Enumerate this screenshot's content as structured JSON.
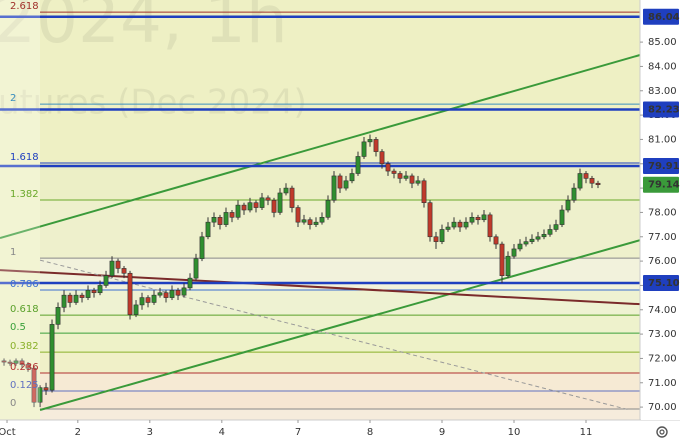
{
  "chart_data": {
    "type": "candlestick",
    "watermark": [
      "2024, 1h",
      "utures (Dec 2024)"
    ],
    "xlim": [
      -0.67,
      106
    ],
    "ylim": [
      69.47,
      86.73
    ],
    "xticks": [
      {
        "value": 0.5,
        "label": "Oct"
      },
      {
        "value": 12.3,
        "label": "2"
      },
      {
        "value": 24.3,
        "label": "3"
      },
      {
        "value": 36.3,
        "label": "4"
      },
      {
        "value": 49,
        "label": "7"
      },
      {
        "value": 61,
        "label": "8"
      },
      {
        "value": 73,
        "label": "9"
      },
      {
        "value": 85,
        "label": "10"
      },
      {
        "value": 97,
        "label": "11"
      }
    ],
    "yticks": [
      {
        "value": 70,
        "label": "70.00"
      },
      {
        "value": 71,
        "label": "71.00"
      },
      {
        "value": 72,
        "label": "72.00"
      },
      {
        "value": 73,
        "label": "73.00"
      },
      {
        "value": 74,
        "label": "74.00"
      },
      {
        "value": 75,
        "label": "75.00"
      },
      {
        "value": 76,
        "label": "76.00"
      },
      {
        "value": 77,
        "label": "77.00"
      },
      {
        "value": 78,
        "label": "78.00"
      },
      {
        "value": 79,
        "label": "79.00"
      },
      {
        "value": 80,
        "label": "80.00"
      },
      {
        "value": 81,
        "label": "81.00"
      },
      {
        "value": 82,
        "label": "82.00"
      },
      {
        "value": 83,
        "label": "83.00"
      },
      {
        "value": 84,
        "label": "84.00"
      },
      {
        "value": 85,
        "label": "85.00"
      }
    ],
    "up_color": "#2f8f2f",
    "down_color": "#c0392b",
    "fib_levels": [
      {
        "label": "2.618",
        "price": 86.23,
        "color": "#a0302a",
        "fill": "#eef0c4"
      },
      {
        "label": "2",
        "price": 82.45,
        "color": "#3a8fbf",
        "fill": "#eef0c4"
      },
      {
        "label": "1.618",
        "price": 80.03,
        "color": "#2040c0",
        "fill": "#ecefc6"
      },
      {
        "label": "1.382",
        "price": 78.51,
        "color": "#6aa82a",
        "fill": "#eef0cc"
      },
      {
        "label": "1",
        "price": 76.12,
        "color": "#888888",
        "fill": "#f2f2dc"
      },
      {
        "label": "0.786",
        "price": 74.81,
        "color": "#3a6fd0",
        "fill": "#eef2d2"
      },
      {
        "label": "0.618",
        "price": 73.78,
        "color": "#5aa02a",
        "fill": "#eef2cc"
      },
      {
        "label": "0.5",
        "price": 73.04,
        "color": "#3aa03a",
        "fill": "#eef2c8"
      },
      {
        "label": "0.382",
        "price": 72.26,
        "color": "#8ab02a",
        "fill": "#f0f0c8"
      },
      {
        "label": "0.236",
        "price": 71.4,
        "color": "#b03030",
        "fill": "#f6ead4"
      },
      {
        "label": "0.125",
        "price": 70.66,
        "color": "#6070c0",
        "fill": "#f6e6d2"
      },
      {
        "label": "0",
        "price": 69.92,
        "color": "#888888",
        "fill": "#f6ecdc"
      }
    ],
    "price_lines": [
      {
        "value": 86.04,
        "label": "86.04",
        "color": "#1f3fbf"
      },
      {
        "value": 82.23,
        "label": "82.23",
        "color": "#1f3fbf"
      },
      {
        "value": 79.91,
        "label": "79.91",
        "color": "#1f3fbf"
      },
      {
        "value": 75.1,
        "label": "75.10",
        "color": "#1f3fbf"
      }
    ],
    "last_price": {
      "value": 79.14,
      "label": "79.14",
      "color": "#3a9a3a"
    },
    "trend_lines": [
      {
        "color": "#3a9a3a",
        "dashed": false,
        "points": [
          [
            -0.67,
            76.95
          ],
          [
            106,
            84.47
          ]
        ]
      },
      {
        "color": "#3a9a3a",
        "dashed": false,
        "points": [
          [
            6,
            69.88
          ],
          [
            106,
            76.86
          ]
        ]
      },
      {
        "color": "#7a2a2a",
        "dashed": false,
        "points": [
          [
            -0.67,
            75.63
          ],
          [
            106,
            74.23
          ]
        ]
      },
      {
        "color": "#999999",
        "dashed": true,
        "points": [
          [
            6,
            76.04
          ],
          [
            104.3,
            69.88
          ]
        ]
      }
    ],
    "ohlc": [
      [
        71.9,
        72.0,
        71.7,
        71.85
      ],
      [
        71.85,
        71.95,
        71.7,
        71.8
      ],
      [
        71.8,
        72.0,
        71.7,
        71.9
      ],
      [
        71.9,
        72.0,
        71.6,
        71.75
      ],
      [
        71.75,
        71.85,
        71.45,
        71.6
      ],
      [
        71.6,
        71.7,
        70.0,
        70.2
      ],
      [
        70.2,
        70.9,
        70.0,
        70.8
      ],
      [
        70.8,
        71.0,
        70.5,
        70.7
      ],
      [
        70.7,
        73.6,
        70.6,
        73.4
      ],
      [
        73.4,
        74.3,
        73.2,
        74.1
      ],
      [
        74.1,
        74.8,
        73.9,
        74.6
      ],
      [
        74.6,
        74.7,
        74.1,
        74.3
      ],
      [
        74.3,
        74.8,
        74.2,
        74.6
      ],
      [
        74.6,
        74.7,
        74.3,
        74.5
      ],
      [
        74.5,
        75.0,
        74.4,
        74.8
      ],
      [
        74.8,
        74.9,
        74.5,
        74.7
      ],
      [
        74.7,
        75.2,
        74.6,
        75.0
      ],
      [
        75.0,
        75.6,
        74.9,
        75.4
      ],
      [
        75.4,
        76.2,
        75.3,
        76.0
      ],
      [
        76.0,
        76.1,
        75.5,
        75.7
      ],
      [
        75.7,
        75.8,
        75.3,
        75.5
      ],
      [
        75.5,
        75.6,
        73.6,
        73.8
      ],
      [
        73.8,
        74.4,
        73.7,
        74.2
      ],
      [
        74.2,
        74.7,
        74.0,
        74.5
      ],
      [
        74.5,
        74.6,
        74.1,
        74.3
      ],
      [
        74.3,
        74.8,
        74.2,
        74.6
      ],
      [
        74.6,
        74.9,
        74.5,
        74.7
      ],
      [
        74.7,
        74.8,
        74.3,
        74.5
      ],
      [
        74.5,
        75.0,
        74.4,
        74.8
      ],
      [
        74.8,
        74.9,
        74.4,
        74.6
      ],
      [
        74.6,
        75.1,
        74.5,
        74.9
      ],
      [
        74.9,
        75.5,
        74.8,
        75.3
      ],
      [
        75.3,
        76.3,
        75.2,
        76.1
      ],
      [
        76.1,
        77.2,
        76.0,
        77.0
      ],
      [
        77.0,
        77.8,
        76.9,
        77.6
      ],
      [
        77.6,
        78.0,
        77.4,
        77.8
      ],
      [
        77.8,
        77.9,
        77.3,
        77.5
      ],
      [
        77.5,
        78.2,
        77.4,
        78.0
      ],
      [
        78.0,
        78.1,
        77.6,
        77.8
      ],
      [
        77.8,
        78.5,
        77.7,
        78.3
      ],
      [
        78.3,
        78.4,
        77.9,
        78.1
      ],
      [
        78.1,
        78.6,
        78.0,
        78.4
      ],
      [
        78.4,
        78.5,
        78.0,
        78.2
      ],
      [
        78.2,
        78.8,
        78.1,
        78.6
      ],
      [
        78.6,
        78.7,
        78.3,
        78.5
      ],
      [
        78.5,
        78.6,
        77.8,
        78.0
      ],
      [
        78.0,
        79.0,
        77.9,
        78.8
      ],
      [
        78.8,
        79.2,
        78.7,
        79.0
      ],
      [
        79.0,
        79.1,
        78.0,
        78.2
      ],
      [
        78.2,
        78.3,
        77.4,
        77.6
      ],
      [
        77.6,
        77.9,
        77.5,
        77.7
      ],
      [
        77.7,
        77.8,
        77.3,
        77.5
      ],
      [
        77.5,
        77.8,
        77.4,
        77.6
      ],
      [
        77.6,
        78.0,
        77.5,
        77.8
      ],
      [
        77.8,
        78.7,
        77.7,
        78.5
      ],
      [
        78.5,
        79.7,
        78.4,
        79.5
      ],
      [
        79.5,
        79.6,
        78.8,
        79.0
      ],
      [
        79.0,
        79.5,
        78.9,
        79.3
      ],
      [
        79.3,
        79.8,
        79.2,
        79.6
      ],
      [
        79.6,
        80.5,
        79.5,
        80.3
      ],
      [
        80.3,
        81.1,
        80.2,
        80.9
      ],
      [
        80.9,
        81.2,
        80.7,
        81.0
      ],
      [
        81.0,
        81.1,
        80.3,
        80.5
      ],
      [
        80.5,
        80.6,
        79.8,
        80.0
      ],
      [
        80.0,
        80.1,
        79.5,
        79.7
      ],
      [
        79.7,
        79.8,
        79.4,
        79.6
      ],
      [
        79.6,
        79.7,
        79.2,
        79.4
      ],
      [
        79.4,
        79.7,
        79.3,
        79.5
      ],
      [
        79.5,
        79.6,
        79.0,
        79.2
      ],
      [
        79.2,
        79.5,
        79.1,
        79.3
      ],
      [
        79.3,
        79.4,
        78.2,
        78.4
      ],
      [
        78.4,
        78.5,
        76.8,
        77.0
      ],
      [
        77.0,
        77.2,
        76.5,
        76.8
      ],
      [
        76.8,
        77.5,
        76.7,
        77.3
      ],
      [
        77.3,
        77.6,
        77.2,
        77.4
      ],
      [
        77.4,
        77.8,
        77.3,
        77.6
      ],
      [
        77.6,
        77.7,
        77.2,
        77.4
      ],
      [
        77.4,
        77.8,
        77.3,
        77.6
      ],
      [
        77.6,
        78.0,
        77.5,
        77.8
      ],
      [
        77.8,
        77.9,
        77.5,
        77.7
      ],
      [
        77.7,
        78.1,
        77.6,
        77.9
      ],
      [
        77.9,
        78.0,
        76.8,
        77.0
      ],
      [
        77.0,
        77.1,
        76.5,
        76.7
      ],
      [
        76.7,
        76.8,
        75.1,
        75.4
      ],
      [
        75.4,
        76.4,
        75.3,
        76.2
      ],
      [
        76.2,
        76.7,
        76.1,
        76.5
      ],
      [
        76.5,
        76.9,
        76.4,
        76.7
      ],
      [
        76.7,
        77.0,
        76.6,
        76.8
      ],
      [
        76.8,
        77.1,
        76.7,
        76.9
      ],
      [
        76.9,
        77.2,
        76.8,
        77.0
      ],
      [
        77.0,
        77.3,
        76.9,
        77.1
      ],
      [
        77.1,
        77.5,
        77.0,
        77.3
      ],
      [
        77.3,
        77.7,
        77.2,
        77.5
      ],
      [
        77.5,
        78.3,
        77.4,
        78.1
      ],
      [
        78.1,
        78.7,
        78.0,
        78.5
      ],
      [
        78.5,
        79.2,
        78.4,
        79.0
      ],
      [
        79.0,
        79.8,
        78.9,
        79.6
      ],
      [
        79.6,
        79.7,
        79.2,
        79.4
      ],
      [
        79.4,
        79.5,
        79.0,
        79.2
      ],
      [
        79.2,
        79.3,
        79.0,
        79.14
      ]
    ]
  }
}
